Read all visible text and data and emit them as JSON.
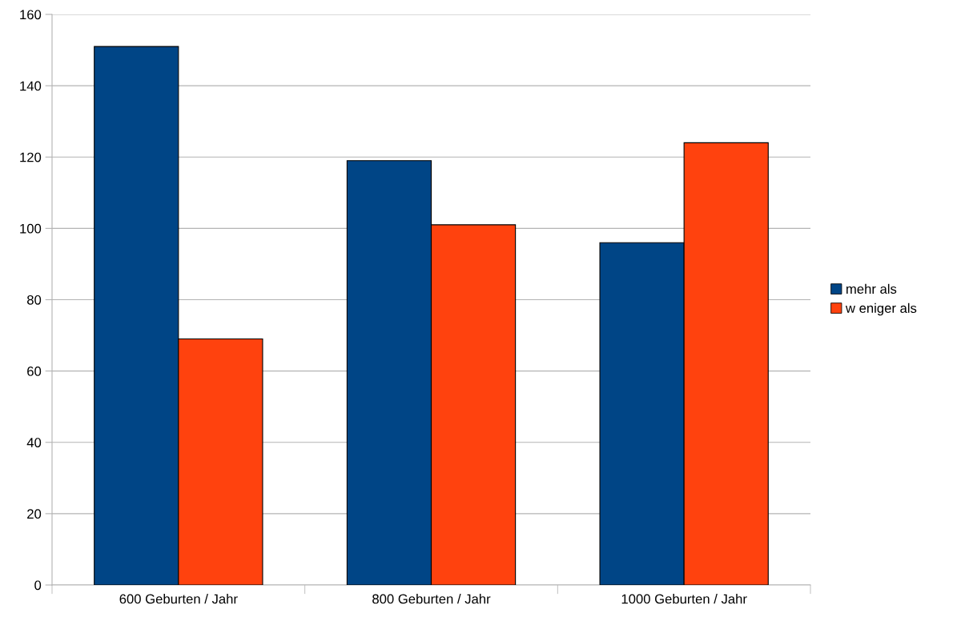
{
  "chart_data": {
    "type": "bar",
    "categories": [
      "600 Geburten / Jahr",
      "800 Geburten / Jahr",
      "1000 Geburten / Jahr"
    ],
    "series": [
      {
        "name": "mehr als",
        "color": "#004586",
        "values": [
          151,
          119,
          96
        ]
      },
      {
        "name": "w eniger als",
        "color": "#ff420e",
        "values": [
          69,
          101,
          124
        ]
      }
    ],
    "ylim": [
      0,
      160
    ],
    "yticks": [
      0,
      20,
      40,
      60,
      80,
      100,
      120,
      140,
      160
    ],
    "grid": "y",
    "legend": "right"
  }
}
